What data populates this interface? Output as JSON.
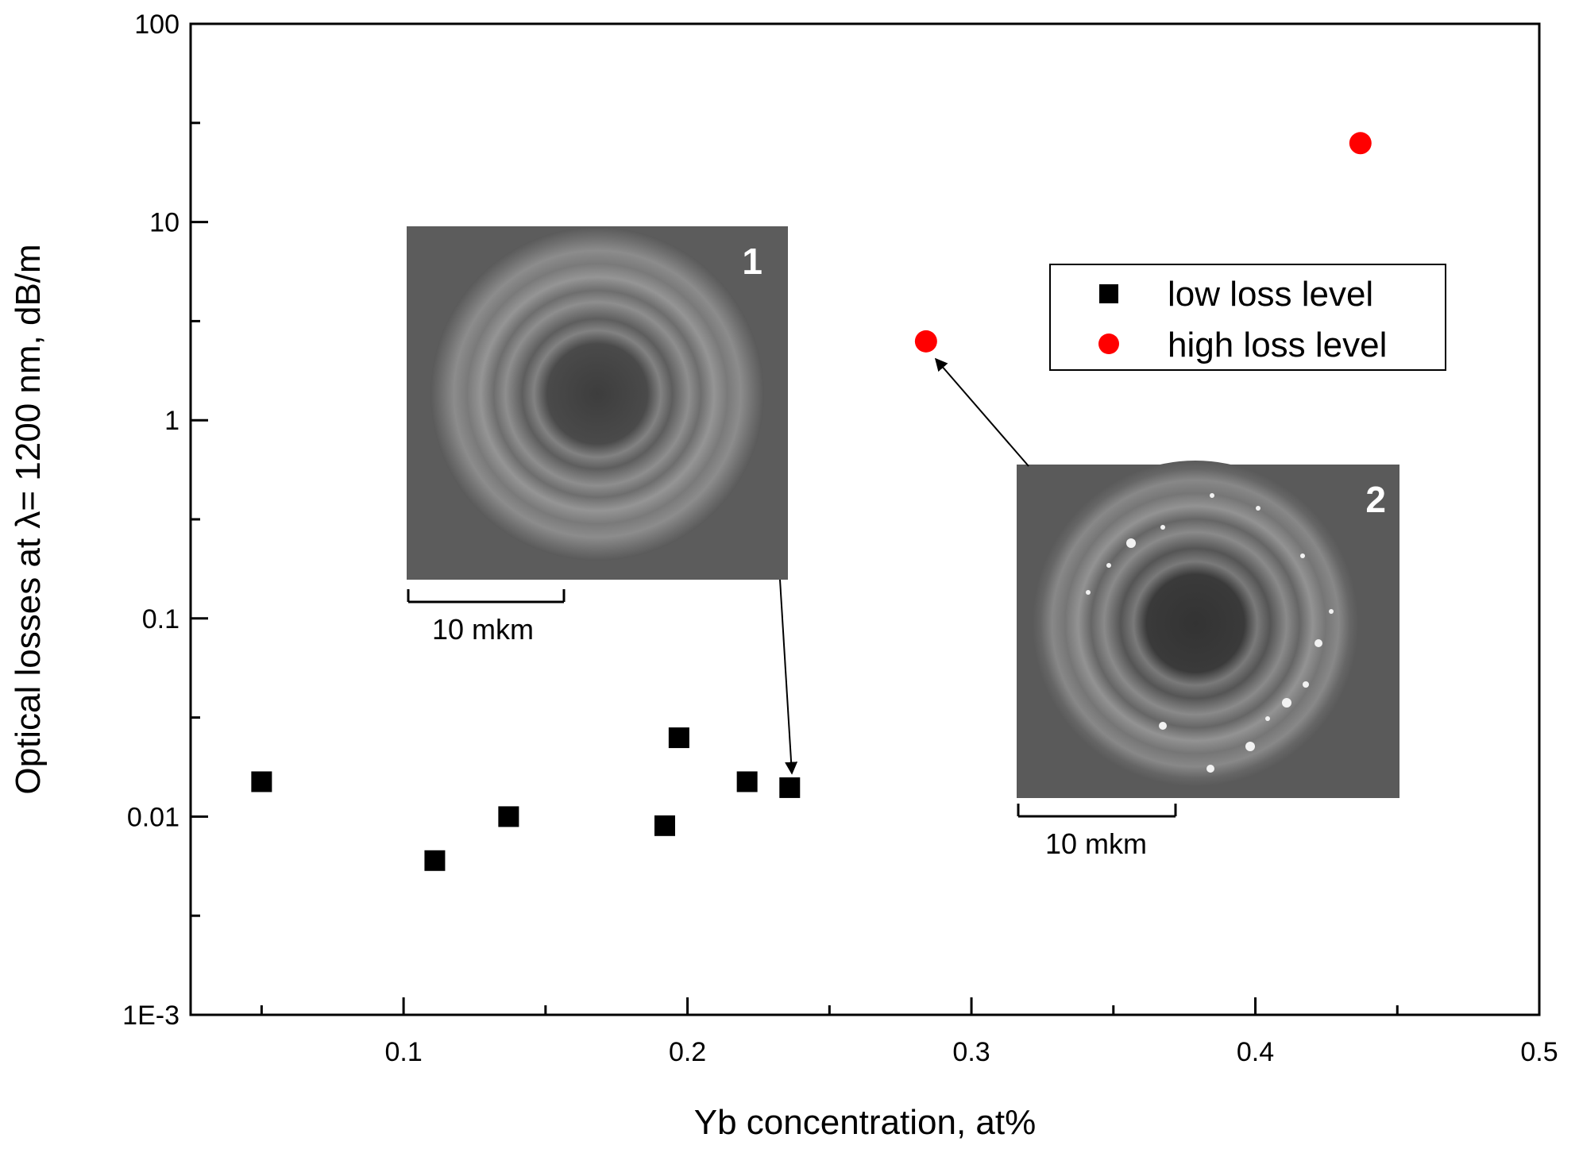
{
  "chart_data": {
    "type": "scatter",
    "title": "",
    "xlabel": "Yb concentration, at%",
    "ylabel": "Optical losses at λ= 1200 nm, dB/m",
    "yscale": "log",
    "xlim": [
      0.025,
      0.5
    ],
    "ylim": [
      0.001,
      100
    ],
    "x_ticks": [
      0.1,
      0.2,
      0.3,
      0.4,
      0.5
    ],
    "x_tick_labels": [
      "0.1",
      "0.2",
      "0.3",
      "0.4",
      "0.5"
    ],
    "x_minor_ticks": [
      0.05,
      0.15,
      0.25,
      0.35,
      0.45
    ],
    "y_ticks": [
      0.001,
      0.01,
      0.1,
      1,
      10,
      100
    ],
    "y_tick_labels": [
      "1E-3",
      "0.01",
      "0.1",
      "1",
      "10",
      "100"
    ],
    "series": [
      {
        "name": "low loss level",
        "marker": "square",
        "color": "#000000",
        "points": [
          {
            "x": 0.05,
            "y": 0.015
          },
          {
            "x": 0.111,
            "y": 0.006
          },
          {
            "x": 0.137,
            "y": 0.01
          },
          {
            "x": 0.192,
            "y": 0.009
          },
          {
            "x": 0.197,
            "y": 0.025
          },
          {
            "x": 0.221,
            "y": 0.015
          },
          {
            "x": 0.236,
            "y": 0.014
          }
        ]
      },
      {
        "name": "high loss level",
        "marker": "circle",
        "color": "#ff0000",
        "points": [
          {
            "x": 0.284,
            "y": 2.5
          },
          {
            "x": 0.437,
            "y": 25
          }
        ]
      }
    ],
    "legend": {
      "position": "upper-right-inside"
    },
    "insets": [
      {
        "label": "1",
        "scale_bar": "10 mkm",
        "points_to": {
          "x": 0.236,
          "y": 0.014
        }
      },
      {
        "label": "2",
        "scale_bar": "10 mkm",
        "points_to": {
          "x": 0.284,
          "y": 2.5
        }
      }
    ]
  }
}
